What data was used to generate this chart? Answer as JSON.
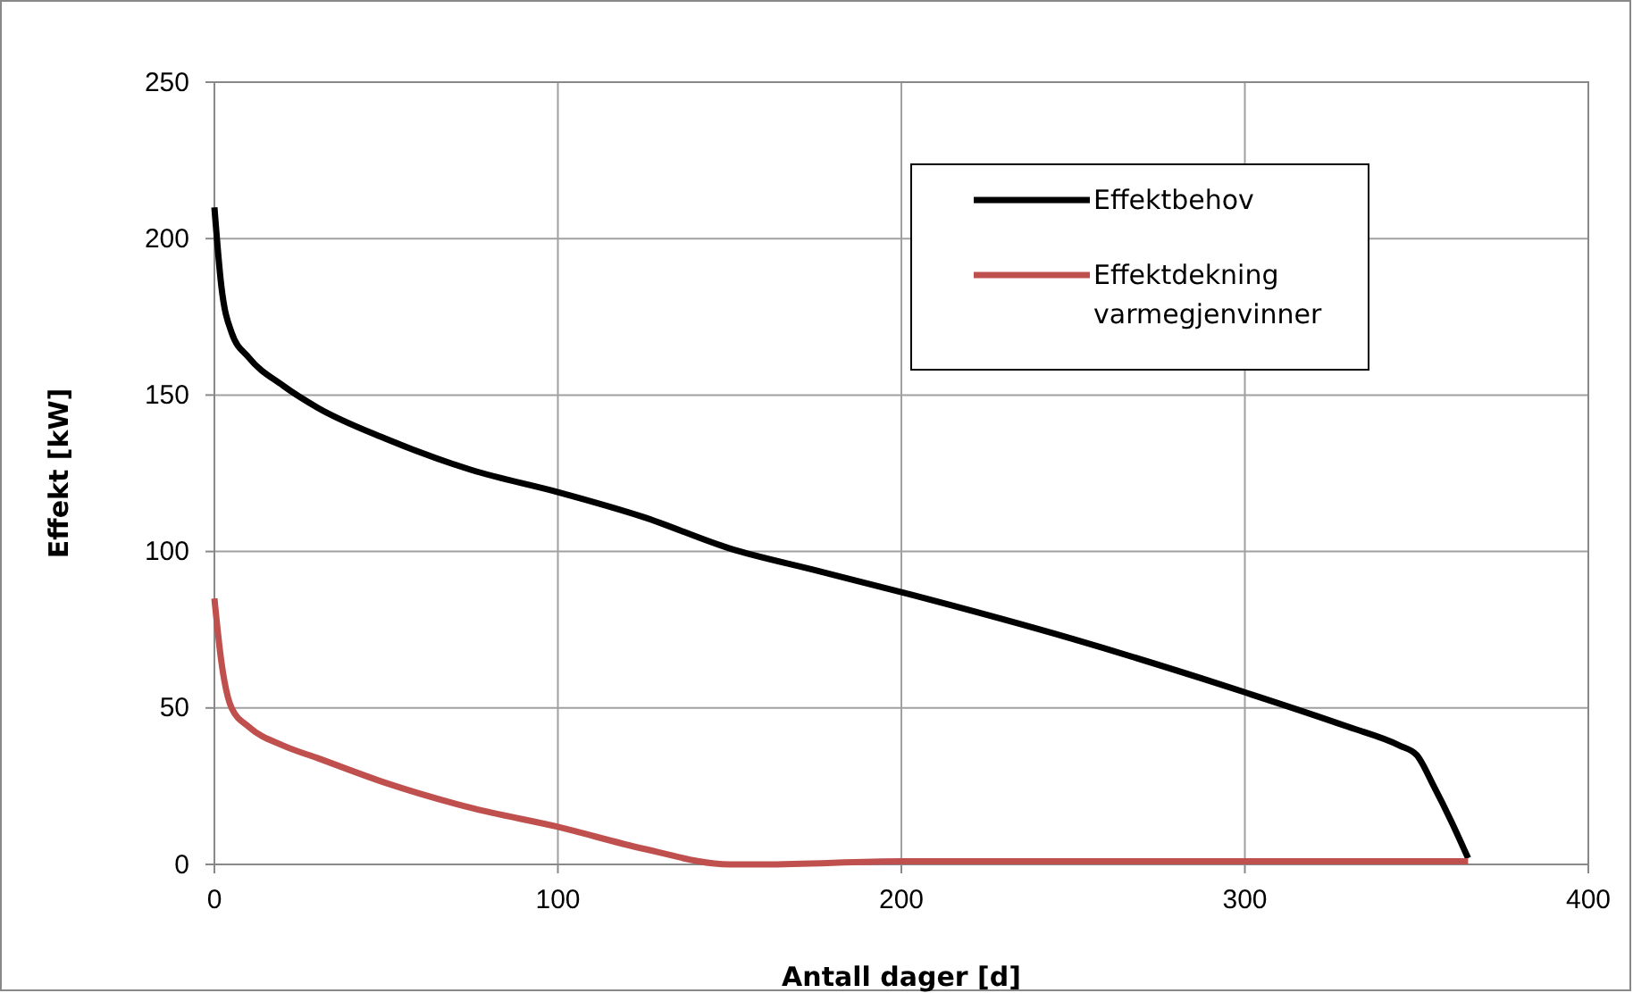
{
  "chart_data": {
    "type": "line",
    "xlabel": "Antall dager [d]",
    "ylabel": "Effekt [kW]",
    "xlim": [
      0,
      400
    ],
    "xticks": [
      0,
      100,
      200,
      300,
      400
    ],
    "ylim": [
      0,
      250
    ],
    "yticks": [
      0,
      50,
      100,
      150,
      200,
      250
    ],
    "grid": true,
    "legend": "top right",
    "marker": "none",
    "line_style": "solid",
    "series": [
      {
        "name": "Effektbehov",
        "color": "#000000",
        "x": [
          0,
          2,
          5,
          10,
          20,
          30,
          50,
          75,
          100,
          125,
          150,
          175,
          200,
          250,
          300,
          330,
          345,
          350,
          355,
          360,
          365
        ],
        "values": [
          210,
          185,
          170,
          162,
          153,
          146,
          136,
          126,
          119,
          111,
          101,
          94,
          87,
          72,
          55,
          44,
          38,
          35,
          25,
          14,
          2
        ]
      },
      {
        "name": "Effektdekning varmegjenvinner",
        "color": "#c0504d",
        "x": [
          0,
          2,
          5,
          10,
          20,
          30,
          50,
          75,
          100,
          125,
          150,
          160,
          200,
          300,
          365
        ],
        "values": [
          85,
          65,
          50,
          44,
          38,
          34,
          26,
          18,
          12,
          5,
          0,
          0,
          1,
          1,
          1
        ]
      }
    ]
  }
}
